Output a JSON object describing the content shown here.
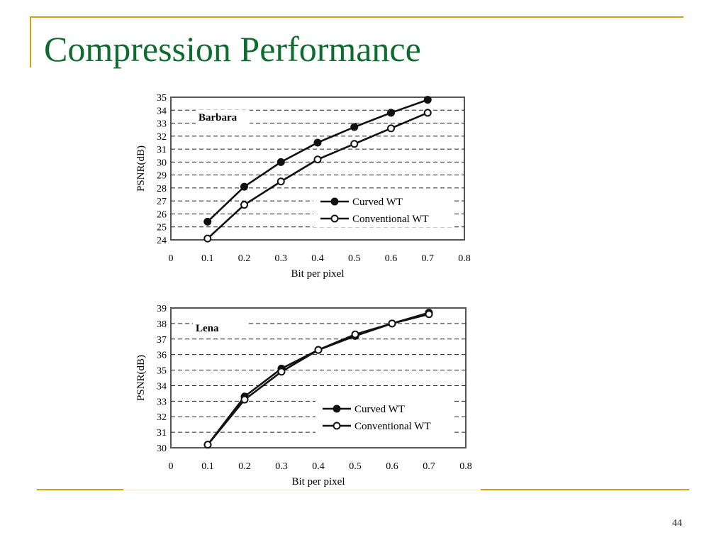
{
  "slide": {
    "title": "Compression Performance",
    "page_number": "44"
  },
  "chart_data": [
    {
      "type": "line",
      "panel_label": "Barbara",
      "xlabel": "Bit per pixel",
      "ylabel": "PSNR(dB)",
      "xlim": [
        0,
        0.8
      ],
      "ylim": [
        24,
        35
      ],
      "x_ticks": [
        "0",
        "0.1",
        "0.2",
        "0.3",
        "0.4",
        "0.5",
        "0.6",
        "0.7",
        "0.8"
      ],
      "y_ticks": [
        "24",
        "25",
        "26",
        "27",
        "28",
        "29",
        "30",
        "31",
        "32",
        "33",
        "34",
        "35"
      ],
      "grid": "horizontal dashed",
      "legend_position": "bottom-right",
      "series": [
        {
          "name": "Curved WT",
          "marker": "filled-circle",
          "x": [
            0.1,
            0.2,
            0.3,
            0.4,
            0.5,
            0.6,
            0.7
          ],
          "y": [
            25.4,
            28.1,
            30.0,
            31.5,
            32.7,
            33.8,
            34.8
          ]
        },
        {
          "name": "Conventional WT",
          "marker": "open-circle",
          "x": [
            0.1,
            0.2,
            0.3,
            0.4,
            0.5,
            0.6,
            0.7
          ],
          "y": [
            24.1,
            26.7,
            28.5,
            30.2,
            31.4,
            32.6,
            33.8
          ]
        }
      ]
    },
    {
      "type": "line",
      "panel_label": "Lena",
      "xlabel": "Bit per pixel",
      "ylabel": "PSNR(dB)",
      "xlim": [
        0,
        0.8
      ],
      "ylim": [
        30,
        39
      ],
      "x_ticks": [
        "0",
        "0.1",
        "0.2",
        "0.3",
        "0.4",
        "0.5",
        "0.6",
        "0.7",
        "0.8"
      ],
      "y_ticks": [
        "30",
        "31",
        "32",
        "33",
        "34",
        "35",
        "36",
        "37",
        "38",
        "39"
      ],
      "grid": "horizontal dashed",
      "legend_position": "bottom-right",
      "series": [
        {
          "name": "Curved WT",
          "marker": "filled-circle",
          "x": [
            0.1,
            0.2,
            0.3,
            0.4,
            0.5,
            0.6,
            0.7
          ],
          "y": [
            30.2,
            33.3,
            35.1,
            36.3,
            37.2,
            38.0,
            38.7
          ]
        },
        {
          "name": "Conventional WT",
          "marker": "open-circle",
          "x": [
            0.1,
            0.2,
            0.3,
            0.4,
            0.5,
            0.6,
            0.7
          ],
          "y": [
            30.2,
            33.1,
            34.9,
            36.3,
            37.3,
            38.0,
            38.6
          ]
        }
      ]
    }
  ]
}
